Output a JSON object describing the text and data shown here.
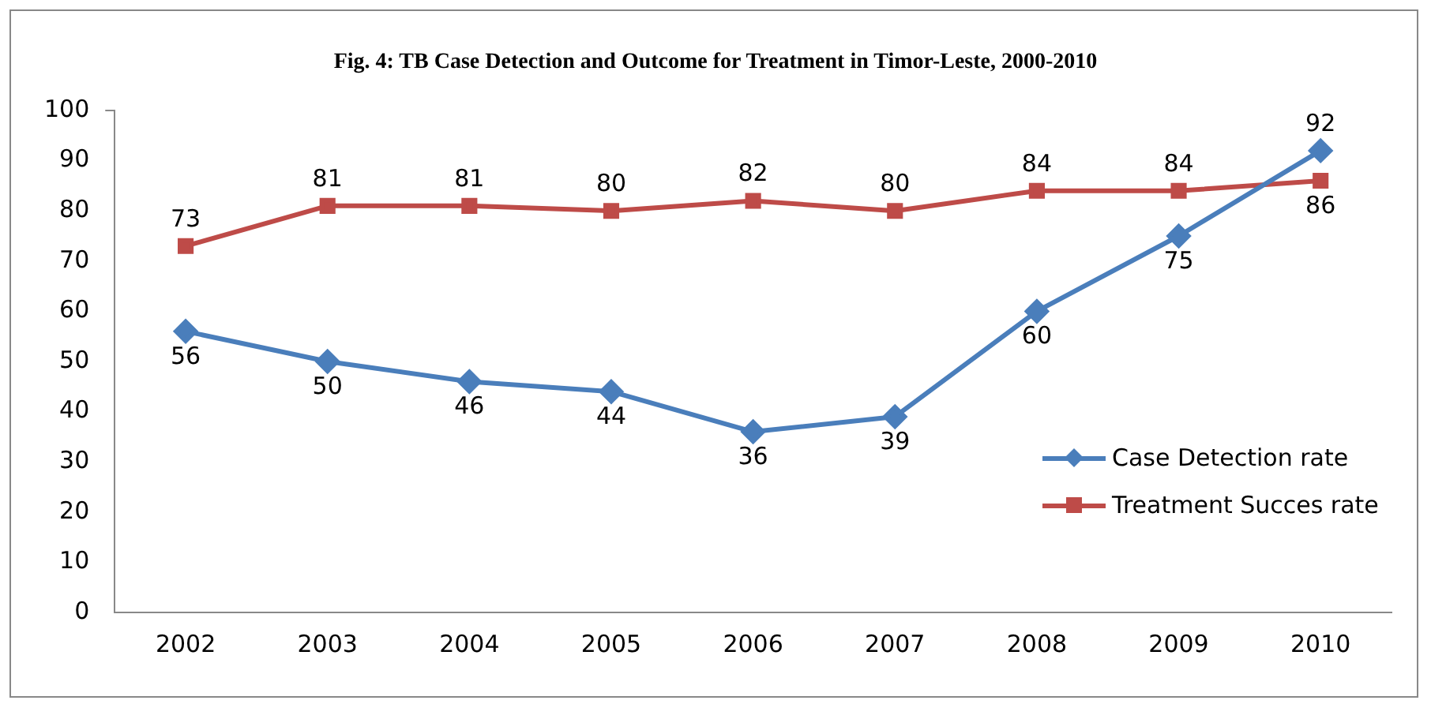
{
  "chart_data": {
    "type": "line",
    "title": "Fig. 4: TB Case Detection and Outcome for Treatment in Timor-Leste, 2000-2010",
    "categories": [
      "2002",
      "2003",
      "2004",
      "2005",
      "2006",
      "2007",
      "2008",
      "2009",
      "2010"
    ],
    "series": [
      {
        "name": "Case Detection rate",
        "color": "#4a7ebb",
        "marker": "diamond",
        "values": [
          56,
          50,
          46,
          44,
          36,
          39,
          60,
          75,
          92
        ]
      },
      {
        "name": "Treatment Succes rate",
        "color": "#be4b48",
        "marker": "square",
        "values": [
          73,
          81,
          81,
          80,
          82,
          80,
          84,
          84,
          86
        ]
      }
    ],
    "ylim": [
      0,
      100
    ],
    "yticks": [
      0,
      10,
      20,
      30,
      40,
      50,
      60,
      70,
      80,
      90,
      100
    ],
    "grid": false,
    "legend": "right",
    "data_labels": true
  }
}
